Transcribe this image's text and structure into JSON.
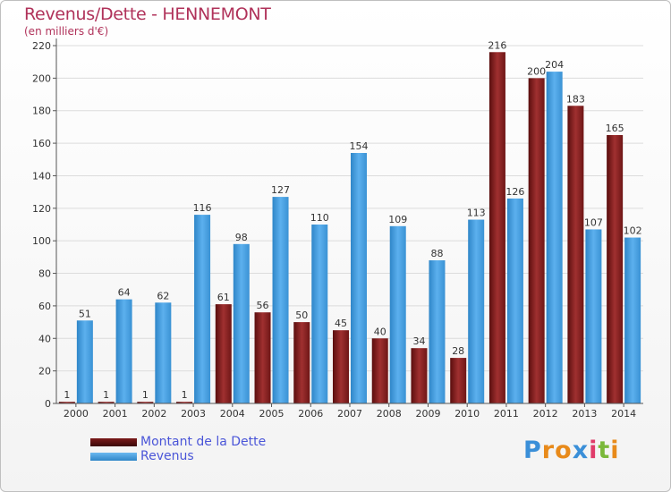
{
  "header": {
    "title": "Revenus/Dette - HENNEMONT",
    "subtitle": "(en milliers d'€)"
  },
  "legend": {
    "debt_label": "Montant de la Dette",
    "revenue_label": "Revenus"
  },
  "logo": {
    "letters": [
      "P",
      "r",
      "o",
      "x",
      "i",
      "t",
      "i"
    ],
    "colors": [
      "#3a8fd8",
      "#e88a1a",
      "#e88a1a",
      "#3a8fd8",
      "#e03c6a",
      "#7ab83a",
      "#e88a1a"
    ]
  },
  "colors": {
    "debt": "#7a1a1a",
    "debt_light": "#a83232",
    "revenue": "#4aa0e0",
    "revenue_light": "#6ab8f0",
    "title": "#b0325a",
    "legend_text": "#4a55d8"
  },
  "chart_data": {
    "type": "bar",
    "title": "Revenus/Dette - HENNEMONT",
    "ylabel": "(en milliers d'€)",
    "categories": [
      "2000",
      "2001",
      "2002",
      "2003",
      "2004",
      "2005",
      "2006",
      "2007",
      "2008",
      "2009",
      "2010",
      "2011",
      "2012",
      "2013",
      "2014"
    ],
    "series": [
      {
        "name": "Montant de la Dette",
        "values": [
          1,
          1,
          1,
          1,
          61,
          56,
          50,
          45,
          40,
          34,
          28,
          216,
          200,
          183,
          165
        ]
      },
      {
        "name": "Revenus",
        "values": [
          51,
          64,
          62,
          116,
          98,
          127,
          110,
          154,
          109,
          88,
          113,
          126,
          204,
          107,
          102
        ]
      }
    ],
    "yticks": [
      0,
      20,
      40,
      60,
      80,
      100,
      120,
      140,
      160,
      180,
      200,
      220
    ],
    "ylim": [
      0,
      220
    ],
    "grid": true,
    "legend_position": "bottom-left"
  }
}
